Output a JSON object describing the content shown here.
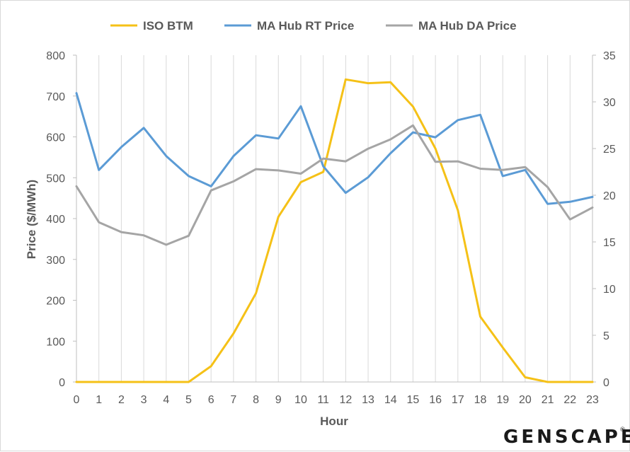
{
  "chart_data": {
    "type": "line",
    "xlabel": "Hour",
    "ylabel": "Price ($/MWh)",
    "x": [
      0,
      1,
      2,
      3,
      4,
      5,
      6,
      7,
      8,
      9,
      10,
      11,
      12,
      13,
      14,
      15,
      16,
      17,
      18,
      19,
      20,
      21,
      22,
      23
    ],
    "x_ticks": [
      "0",
      "1",
      "2",
      "3",
      "4",
      "5",
      "6",
      "7",
      "8",
      "9",
      "10",
      "11",
      "12",
      "13",
      "14",
      "15",
      "16",
      "17",
      "18",
      "19",
      "20",
      "21",
      "22",
      "23"
    ],
    "ylim": [
      0,
      800
    ],
    "y_ticks": [
      "0",
      "100",
      "200",
      "300",
      "400",
      "500",
      "600",
      "700",
      "800"
    ],
    "y2lim": [
      0,
      35
    ],
    "y2_ticks": [
      "0",
      "5",
      "10",
      "15",
      "20",
      "25",
      "30",
      "35"
    ],
    "legend_position": "top",
    "grid": "vertical",
    "series": [
      {
        "name": "ISO BTM",
        "color": "#f5c117",
        "axis": "right",
        "values": [
          0,
          0,
          0,
          0,
          0,
          0,
          1.7,
          5.2,
          9.5,
          17.7,
          21.4,
          22.5,
          32.4,
          32.0,
          32.1,
          29.5,
          25.0,
          18.4,
          7.0,
          3.7,
          0.5,
          0,
          0,
          0
        ]
      },
      {
        "name": "MA Hub RT Price",
        "color": "#5b9bd5",
        "axis": "left",
        "values": [
          707,
          519,
          575,
          622,
          553,
          504,
          479,
          553,
          604,
          596,
          675,
          528,
          463,
          501,
          560,
          611,
          599,
          641,
          654,
          504,
          519,
          436,
          441,
          453
        ]
      },
      {
        "name": "MA Hub DA Price",
        "color": "#a5a5a5",
        "axis": "left",
        "values": [
          479,
          391,
          367,
          359,
          336,
          358,
          469,
          491,
          521,
          518,
          510,
          547,
          540,
          571,
          594,
          628,
          539,
          540,
          522,
          519,
          526,
          477,
          398,
          427
        ]
      }
    ]
  },
  "branding": {
    "logo_text": "GENSCAPE",
    "logo_mark": "®"
  }
}
